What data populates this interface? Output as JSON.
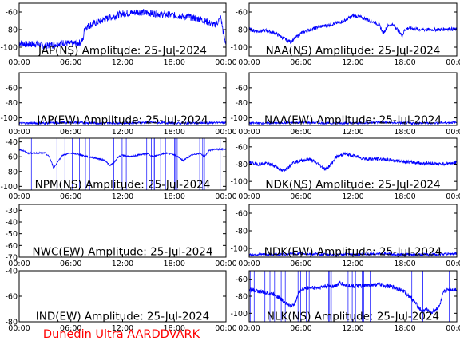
{
  "footer": "Dunedin Ultra AARDDVARK",
  "colors": {
    "trace": "#0000ff",
    "footer": "#ff0000",
    "axis": "#000000"
  },
  "chart_data": [
    {
      "type": "line",
      "title": "JAP(NS) Amplitude: 25-Jul-2024",
      "xlim": [
        0,
        24
      ],
      "ylim": [
        -110,
        -50
      ],
      "yticks": [
        {
          "v": -60,
          "label": "-60"
        },
        {
          "v": -80,
          "label": "-80"
        },
        {
          "v": -100,
          "label": "-100"
        }
      ],
      "xticks": [
        "00:00",
        "06:00",
        "12:00",
        "18:00",
        "00:00"
      ],
      "series": [
        {
          "x": [
            0,
            1,
            2,
            3,
            4,
            5,
            6,
            7,
            7.4,
            7.6,
            8,
            9,
            10,
            11,
            12,
            13,
            14,
            15,
            16,
            17,
            18,
            19,
            20,
            21,
            22,
            22.6,
            23,
            23.4,
            23.8,
            24
          ],
          "y": [
            -95,
            -97,
            -96,
            -99,
            -97,
            -95,
            -96,
            -95,
            -92,
            -78,
            -76,
            -72,
            -68,
            -65,
            -62,
            -61,
            -60,
            -61,
            -62,
            -63,
            -64,
            -65,
            -66,
            -68,
            -72,
            -75,
            -72,
            -66,
            -90,
            -95
          ],
          "band": 8
        }
      ]
    },
    {
      "type": "line",
      "title": "NAA(NS) Amplitude: 25-Jul-2024",
      "xlim": [
        0,
        24
      ],
      "ylim": [
        -110,
        -50
      ],
      "yticks": [
        {
          "v": -60,
          "label": "-60"
        },
        {
          "v": -80,
          "label": "-80"
        },
        {
          "v": -100,
          "label": "-100"
        }
      ],
      "xticks": [
        "00:00",
        "06:00",
        "12:00",
        "18:00",
        "00:00"
      ],
      "series": [
        {
          "x": [
            0,
            1,
            2,
            3,
            4,
            4.8,
            5.5,
            6,
            7,
            8,
            9,
            10,
            11,
            12,
            13,
            14,
            15,
            15.5,
            16,
            16.5,
            17,
            17.7,
            18,
            18.5,
            19,
            20,
            21,
            22,
            23,
            24
          ],
          "y": [
            -80,
            -82,
            -81,
            -84,
            -90,
            -94,
            -88,
            -84,
            -80,
            -77,
            -75,
            -73,
            -70,
            -64,
            -66,
            -70,
            -74,
            -84,
            -76,
            -74,
            -78,
            -87,
            -80,
            -78,
            -79,
            -80,
            -80,
            -80,
            -79,
            -80
          ],
          "band": 4
        }
      ]
    },
    {
      "type": "line",
      "title": "JAP(EW) Amplitude: 25-Jul-2024",
      "xlim": [
        0,
        24
      ],
      "ylim": [
        -110,
        -40
      ],
      "yticks": [
        {
          "v": -60,
          "label": "-60"
        },
        {
          "v": -80,
          "label": "-80"
        },
        {
          "v": -100,
          "label": "-100"
        }
      ],
      "xticks": [
        "00:00",
        "06:00",
        "12:00",
        "18:00",
        "00:00"
      ],
      "series": [
        {
          "x": [
            0,
            3,
            6,
            9,
            12,
            15,
            18,
            21,
            24
          ],
          "y": [
            -107,
            -107,
            -106,
            -107,
            -107,
            -106,
            -107,
            -107,
            -106
          ],
          "band": 3
        }
      ]
    },
    {
      "type": "line",
      "title": "NAA(EW) Amplitude: 25-Jul-2024",
      "xlim": [
        0,
        24
      ],
      "ylim": [
        -110,
        -40
      ],
      "yticks": [
        {
          "v": -60,
          "label": "-60"
        },
        {
          "v": -80,
          "label": "-80"
        },
        {
          "v": -100,
          "label": "-100"
        }
      ],
      "xticks": [
        "00:00",
        "06:00",
        "12:00",
        "18:00",
        "00:00"
      ],
      "series": [
        {
          "x": [
            0,
            3,
            6,
            9,
            12,
            15,
            18,
            21,
            24
          ],
          "y": [
            -107,
            -107,
            -106,
            -107,
            -107,
            -106,
            -107,
            -107,
            -106
          ],
          "band": 3
        }
      ]
    },
    {
      "type": "line",
      "title": "NPM(NS) Amplitude: 25-Jul-2024",
      "xlim": [
        0,
        24
      ],
      "ylim": [
        -105,
        -35
      ],
      "yticks": [
        {
          "v": -40,
          "label": "-40"
        },
        {
          "v": -60,
          "label": "-60"
        },
        {
          "v": -80,
          "label": "-80"
        },
        {
          "v": -100,
          "label": "-100"
        }
      ],
      "xticks": [
        "00:00",
        "06:00",
        "12:00",
        "18:00",
        "00:00"
      ],
      "series": [
        {
          "x": [
            0,
            0.5,
            1,
            2,
            3,
            3.5,
            4,
            5,
            6,
            7,
            8,
            9,
            10,
            10.5,
            11,
            11.5,
            12,
            13,
            14,
            15,
            15.5,
            16,
            17,
            18,
            19,
            20,
            21,
            21.5,
            22,
            22.5,
            23,
            24
          ],
          "y": [
            -50,
            -52,
            -55,
            -55,
            -55,
            -60,
            -75,
            -58,
            -55,
            -57,
            -60,
            -62,
            -65,
            -72,
            -68,
            -60,
            -58,
            -60,
            -57,
            -56,
            -60,
            -58,
            -55,
            -57,
            -65,
            -58,
            -55,
            -60,
            -52,
            -50,
            -50,
            -50
          ],
          "band": 2,
          "spikes": true
        }
      ]
    },
    {
      "type": "line",
      "title": "NDK(NS) Amplitude: 25-Jul-2024",
      "xlim": [
        0,
        24
      ],
      "ylim": [
        -110,
        -50
      ],
      "yticks": [
        {
          "v": -60,
          "label": "-60"
        },
        {
          "v": -80,
          "label": "-80"
        },
        {
          "v": -100,
          "label": "-100"
        }
      ],
      "xticks": [
        "00:00",
        "06:00",
        "12:00",
        "18:00",
        "00:00"
      ],
      "series": [
        {
          "x": [
            0,
            1,
            2,
            3,
            3.8,
            4.5,
            5,
            6,
            7,
            8,
            8.8,
            9.5,
            10,
            11,
            12,
            13,
            14,
            15,
            16,
            17,
            18,
            19,
            20,
            21,
            22,
            23,
            24
          ],
          "y": [
            -78,
            -80,
            -79,
            -82,
            -88,
            -84,
            -78,
            -76,
            -74,
            -80,
            -86,
            -80,
            -72,
            -68,
            -70,
            -73,
            -74,
            -74,
            -75,
            -76,
            -77,
            -78,
            -79,
            -79,
            -80,
            -79,
            -78
          ],
          "band": 4
        }
      ]
    },
    {
      "type": "line",
      "title": "NWC(EW) Amplitude: 25-Jul-2024",
      "xlim": [
        0,
        24
      ],
      "ylim": [
        -70,
        -25
      ],
      "yticks": [
        {
          "v": -30,
          "label": "-30"
        },
        {
          "v": -40,
          "label": "-40"
        },
        {
          "v": -50,
          "label": "-50"
        },
        {
          "v": -60,
          "label": "-60"
        },
        {
          "v": -70,
          "label": "-70"
        }
      ],
      "xticks": [
        "00:00",
        "06:00",
        "12:00",
        "18:00",
        "00:00"
      ],
      "series": []
    },
    {
      "type": "line",
      "title": "NDK(EW) Amplitude: 25-Jul-2024",
      "xlim": [
        0,
        24
      ],
      "ylim": [
        -110,
        -50
      ],
      "yticks": [
        {
          "v": -60,
          "label": "-60"
        },
        {
          "v": -80,
          "label": "-80"
        },
        {
          "v": -100,
          "label": "-100"
        }
      ],
      "xticks": [
        "00:00",
        "06:00",
        "12:00",
        "18:00",
        "00:00"
      ],
      "series": [
        {
          "x": [
            0,
            3,
            6,
            9,
            12,
            15,
            18,
            21,
            24
          ],
          "y": [
            -107,
            -107,
            -106,
            -107,
            -107,
            -106,
            -107,
            -107,
            -106
          ],
          "band": 3
        }
      ]
    },
    {
      "type": "line",
      "title": "IND(EW) Amplitude: 25-Jul-2024",
      "xlim": [
        0,
        24
      ],
      "ylim": [
        -80,
        -40
      ],
      "yticks": [
        {
          "v": -40,
          "label": "-40"
        },
        {
          "v": -60,
          "label": "-60"
        },
        {
          "v": -80,
          "label": "-80"
        }
      ],
      "xticks": [
        "00:00",
        "06:00",
        "12:00",
        "18:00",
        "00:00"
      ],
      "series": []
    },
    {
      "type": "line",
      "title": "NLK(NS) Amplitude: 25-Jul-2024",
      "xlim": [
        0,
        24
      ],
      "ylim": [
        -110,
        -50
      ],
      "yticks": [
        {
          "v": -60,
          "label": "-60"
        },
        {
          "v": -80,
          "label": "-80"
        },
        {
          "v": -100,
          "label": "-100"
        }
      ],
      "xticks": [
        "00:00",
        "06:00",
        "12:00",
        "18:00",
        "00:00"
      ],
      "series": [
        {
          "x": [
            0,
            1,
            2,
            3,
            4,
            4.8,
            5.3,
            5.6,
            6,
            7,
            8,
            9,
            10,
            10.5,
            11,
            12,
            13,
            14,
            15,
            16,
            17,
            18,
            19,
            19.5,
            20,
            20.5,
            21,
            22,
            22.5,
            23,
            24
          ],
          "y": [
            -72,
            -74,
            -76,
            -78,
            -86,
            -92,
            -88,
            -78,
            -72,
            -70,
            -70,
            -68,
            -68,
            -64,
            -67,
            -68,
            -68,
            -67,
            -66,
            -68,
            -70,
            -75,
            -85,
            -92,
            -98,
            -95,
            -100,
            -92,
            -75,
            -72,
            -72
          ],
          "band": 5,
          "spikes": true
        }
      ]
    }
  ]
}
